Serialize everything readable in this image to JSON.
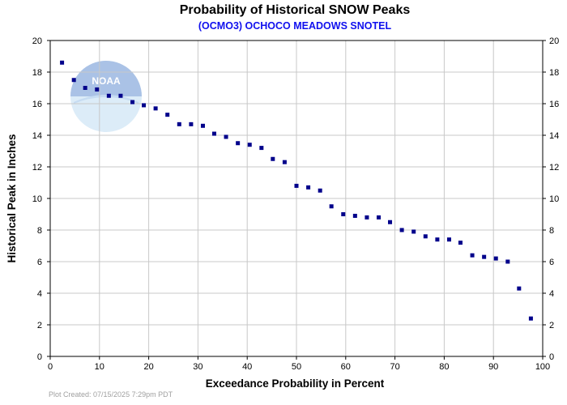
{
  "footer": "Plot Created: 07/15/2025 7:29pm PDT",
  "logo": {
    "text": "NOAA",
    "icon": "noaa-logo"
  },
  "colors": {
    "marker": "#00008b",
    "subtitle": "#1010ee",
    "grid": "#c8c8c8"
  },
  "chart_data": {
    "type": "scatter",
    "title": "Probability of Historical SNOW Peaks",
    "subtitle": "(OCMO3) OCHOCO MEADOWS SNOTEL",
    "xlabel": "Exceedance Probability in Percent",
    "ylabel": "Historical Peak in Inches",
    "xlim": [
      0,
      100
    ],
    "ylim": [
      0,
      20
    ],
    "xticks": [
      0,
      10,
      20,
      30,
      40,
      50,
      60,
      70,
      80,
      90,
      100
    ],
    "yticks": [
      0,
      2,
      4,
      6,
      8,
      10,
      12,
      14,
      16,
      18,
      20
    ],
    "grid": true,
    "right_axis": true,
    "x": [
      2.4,
      4.8,
      7.1,
      9.5,
      11.9,
      14.3,
      16.7,
      19.0,
      21.4,
      23.8,
      26.2,
      28.6,
      31.0,
      33.3,
      35.7,
      38.1,
      40.5,
      42.9,
      45.2,
      47.6,
      50.0,
      52.4,
      54.8,
      57.1,
      59.5,
      61.9,
      64.3,
      66.7,
      69.0,
      71.4,
      73.8,
      76.2,
      78.6,
      81.0,
      83.3,
      85.7,
      88.1,
      90.5,
      92.9,
      95.2,
      97.6
    ],
    "y": [
      18.6,
      17.5,
      17.0,
      16.9,
      16.5,
      16.5,
      16.1,
      15.9,
      15.7,
      15.3,
      14.7,
      14.7,
      14.6,
      14.1,
      13.9,
      13.5,
      13.4,
      13.2,
      12.5,
      12.3,
      10.8,
      10.7,
      10.5,
      9.5,
      9.0,
      8.9,
      8.8,
      8.8,
      8.5,
      8.0,
      7.9,
      7.6,
      7.4,
      7.4,
      7.2,
      6.4,
      6.3,
      6.2,
      6.0,
      4.3,
      2.4
    ]
  }
}
